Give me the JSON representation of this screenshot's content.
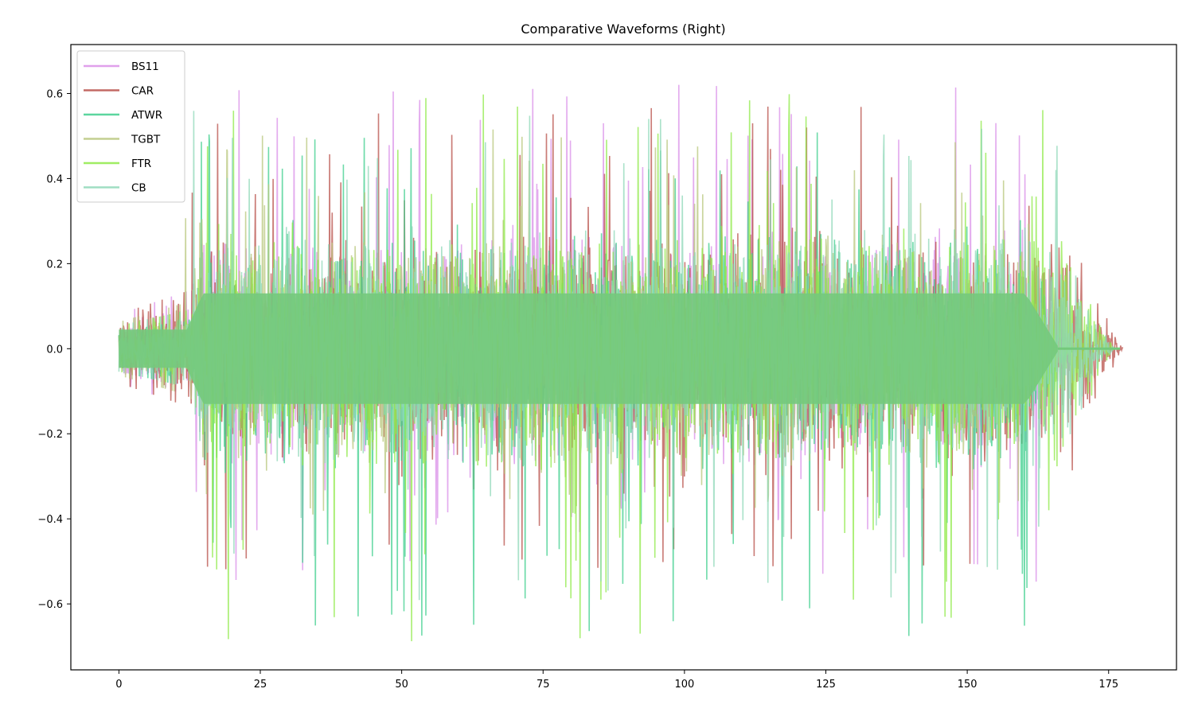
{
  "chart_data": {
    "type": "line",
    "title": "Comparative Waveforms (Right)",
    "xlabel": "",
    "ylabel": "",
    "xlim": [
      -8.5,
      187
    ],
    "ylim": [
      -0.755,
      0.715
    ],
    "xticks": [
      0,
      25,
      50,
      75,
      100,
      125,
      150,
      175
    ],
    "xtick_labels": [
      "0",
      "25",
      "50",
      "75",
      "100",
      "125",
      "150",
      "175"
    ],
    "yticks": [
      -0.6,
      -0.4,
      -0.2,
      0.0,
      0.2,
      0.4,
      0.6
    ],
    "ytick_labels": [
      "−0.6",
      "−0.4",
      "−0.2",
      "0.0",
      "0.2",
      "0.4",
      "0.6"
    ],
    "grid": false,
    "legend_position": "upper left",
    "series": [
      {
        "name": "BS11",
        "color": "#da8fe8",
        "alpha": 0.75,
        "start": 0,
        "end": 170.5,
        "intro_end": 12,
        "intro_amp": 0.09,
        "body_amp": 0.2,
        "peak_max": 0.65,
        "peak_min": -0.55
      },
      {
        "name": "CAR",
        "color": "#b8504a",
        "alpha": 0.75,
        "start": 0,
        "end": 177.5,
        "intro_end": 12,
        "intro_amp": 0.09,
        "body_amp": 0.2,
        "peak_max": 0.57,
        "peak_min": -0.52
      },
      {
        "name": "ATWR",
        "color": "#3fcf8e",
        "alpha": 0.75,
        "start": 0,
        "end": 169,
        "intro_end": 12,
        "intro_amp": 0.06,
        "body_amp": 0.2,
        "peak_max": 0.54,
        "peak_min": -0.68
      },
      {
        "name": "TGBT",
        "color": "#b8c77c",
        "alpha": 0.75,
        "start": 0,
        "end": 169,
        "intro_end": 11,
        "intro_amp": 0.07,
        "body_amp": 0.19,
        "peak_max": 0.52,
        "peak_min": -0.39
      },
      {
        "name": "FTR",
        "color": "#8fea48",
        "alpha": 0.75,
        "start": 0,
        "end": 176,
        "intro_end": 12,
        "intro_amp": 0.06,
        "body_amp": 0.2,
        "peak_max": 0.6,
        "peak_min": -0.69
      },
      {
        "name": "CB",
        "color": "#8fd8b8",
        "alpha": 0.75,
        "start": 0,
        "end": 176,
        "intro_end": 12,
        "intro_amp": 0.06,
        "body_amp": 0.2,
        "peak_max": 0.56,
        "peak_min": -0.6
      }
    ],
    "annotations": []
  }
}
